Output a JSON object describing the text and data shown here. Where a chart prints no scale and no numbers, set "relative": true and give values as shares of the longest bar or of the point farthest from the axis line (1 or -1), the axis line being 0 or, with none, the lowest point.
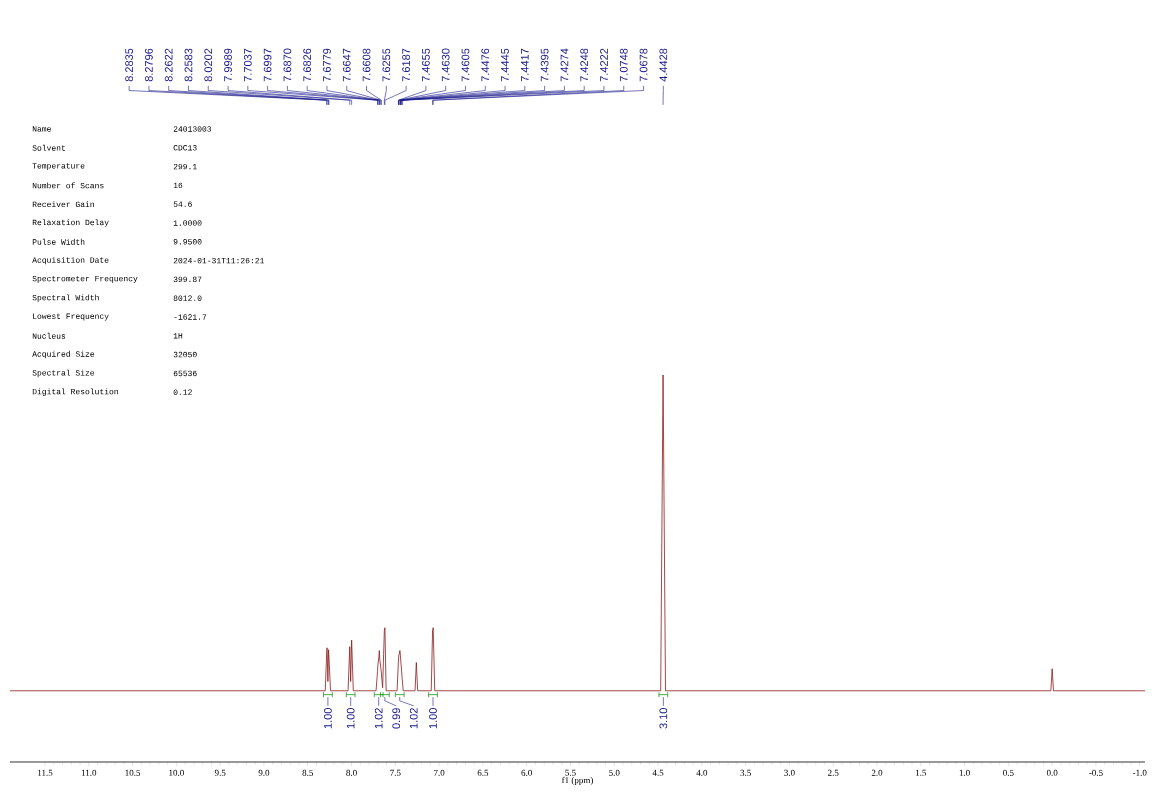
{
  "chart_data": {
    "type": "line",
    "relative": true,
    "xlabel": "f1 (ppm)",
    "xlim": [
      11.9,
      -1.06
    ],
    "xticks": [
      11.5,
      {
        "value": 11.0,
        "label": "11.0"
      },
      10.5,
      {
        "value": 10.0,
        "label": "10.0"
      },
      9.5,
      {
        "value": 9.0,
        "label": "9.0"
      },
      8.5,
      {
        "value": 8.0,
        "label": "8.0"
      },
      7.5,
      {
        "value": 7.0,
        "label": "7.0"
      },
      6.5,
      {
        "value": 6.0,
        "label": "6.0"
      },
      5.5,
      {
        "value": 5.0,
        "label": "5.0"
      },
      4.5,
      {
        "value": 4.0,
        "label": "4.0"
      },
      3.5,
      {
        "value": 3.0,
        "label": "3.0"
      },
      2.5,
      {
        "value": 2.0,
        "label": "2.0"
      },
      1.5,
      {
        "value": 1.0,
        "label": "1.0"
      },
      0.5,
      {
        "value": 0.0,
        "label": "0.0"
      },
      -0.5,
      {
        "value": -1.0,
        "label": "-1.0"
      }
    ],
    "color": "#8b1a1a",
    "x": [
      11.9,
      8.3,
      8.2835,
      8.2796,
      8.27,
      8.2622,
      8.2583,
      8.24,
      8.04,
      8.0202,
      8.01,
      7.9989,
      7.98,
      7.72,
      7.7037,
      7.6997,
      7.687,
      7.6826,
      7.6779,
      7.6647,
      7.6608,
      7.645,
      7.6255,
      7.6187,
      7.605,
      7.48,
      7.4655,
      7.463,
      7.4605,
      7.4476,
      7.4445,
      7.4417,
      7.4395,
      7.4274,
      7.4248,
      7.4222,
      7.41,
      7.275,
      7.26,
      7.245,
      7.09,
      7.0748,
      7.0678,
      7.05,
      4.47,
      4.4428,
      4.415,
      0.015,
      0.0,
      -0.015,
      -1.06
    ],
    "values": [
      0.184,
      0.184,
      0.282,
      0.295,
      0.208,
      0.29,
      0.274,
      0.184,
      0.184,
      0.298,
      0.208,
      0.315,
      0.184,
      0.184,
      0.233,
      0.249,
      0.274,
      0.288,
      0.266,
      0.241,
      0.233,
      0.192,
      0.339,
      0.347,
      0.184,
      0.184,
      0.257,
      0.266,
      0.274,
      0.288,
      0.282,
      0.274,
      0.266,
      0.233,
      0.225,
      0.216,
      0.184,
      0.184,
      0.257,
      0.184,
      0.184,
      0.339,
      0.347,
      0.184,
      0.184,
      1.0,
      0.184,
      0.184,
      0.241,
      0.184,
      0.184
    ],
    "annotations": [
      "Name",
      "24013003",
      "Solvent",
      "CDC13",
      "Temperature",
      "299.1",
      "Number of Scans",
      "16",
      "Receiver Gain",
      "54.6",
      "Relaxation Delay",
      "1.0000",
      "Pulse Width",
      "9.9500",
      "Acquisition Date",
      "2024-01-31T11:26:21",
      "Spectrometer Frequency",
      "399.87",
      "Spectral Width",
      "8012.0",
      "Lowest Frequency",
      "-1621.7",
      "Nucleus",
      "1H",
      "Acquired Size",
      "32050",
      "Spectral Size",
      "65536",
      "Digital Resolution",
      "0.12",
      {
        "text": "8.2835",
        "x": 8.2835
      },
      {
        "text": "8.2796",
        "x": 8.2796
      },
      {
        "text": "8.2622",
        "x": 8.2622
      },
      {
        "text": "8.2583",
        "x": 8.2583
      },
      {
        "text": "8.0202",
        "x": 8.0202
      },
      {
        "text": "7.9989",
        "x": 7.9989
      },
      {
        "text": "7.7037",
        "x": 7.7037
      },
      {
        "text": "7.6997",
        "x": 7.6997
      },
      {
        "text": "7.6870",
        "x": 7.687
      },
      {
        "text": "7.6826",
        "x": 7.6826
      },
      {
        "text": "7.6779",
        "x": 7.6779
      },
      {
        "text": "7.6647",
        "x": 7.6647
      },
      {
        "text": "7.6608",
        "x": 7.6608
      },
      {
        "text": "7.6255",
        "x": 7.6255
      },
      {
        "text": "7.6187",
        "x": 7.6187
      },
      {
        "text": "7.4655",
        "x": 7.4655
      },
      {
        "text": "7.4630",
        "x": 7.463
      },
      {
        "text": "7.4605",
        "x": 7.4605
      },
      {
        "text": "7.4476",
        "x": 7.4476
      },
      {
        "text": "7.4445",
        "x": 7.4445
      },
      {
        "text": "7.4417",
        "x": 7.4417
      },
      {
        "text": "7.4395",
        "x": 7.4395
      },
      {
        "text": "7.4274",
        "x": 7.4274
      },
      {
        "text": "7.4248",
        "x": 7.4248
      },
      {
        "text": "7.4222",
        "x": 7.4222
      },
      {
        "text": "7.0748",
        "x": 7.0748
      },
      {
        "text": "7.0678",
        "x": 7.0678
      },
      {
        "text": "4.4428",
        "x": 4.4428
      },
      {
        "text": "1.00",
        "x": 8.27,
        "y": 0.184
      },
      {
        "text": "1.00",
        "x": 8.01,
        "y": 0.184
      },
      {
        "text": "1.02",
        "x": 7.69,
        "y": 0.184
      },
      {
        "text": "0.99",
        "x": 7.62,
        "y": 0.184
      },
      {
        "text": "1.02",
        "x": 7.45,
        "y": 0.184
      },
      {
        "text": "1.00",
        "x": 7.07,
        "y": 0.184
      },
      {
        "text": "3.10",
        "x": 4.44,
        "y": 0.184
      }
    ]
  }
}
